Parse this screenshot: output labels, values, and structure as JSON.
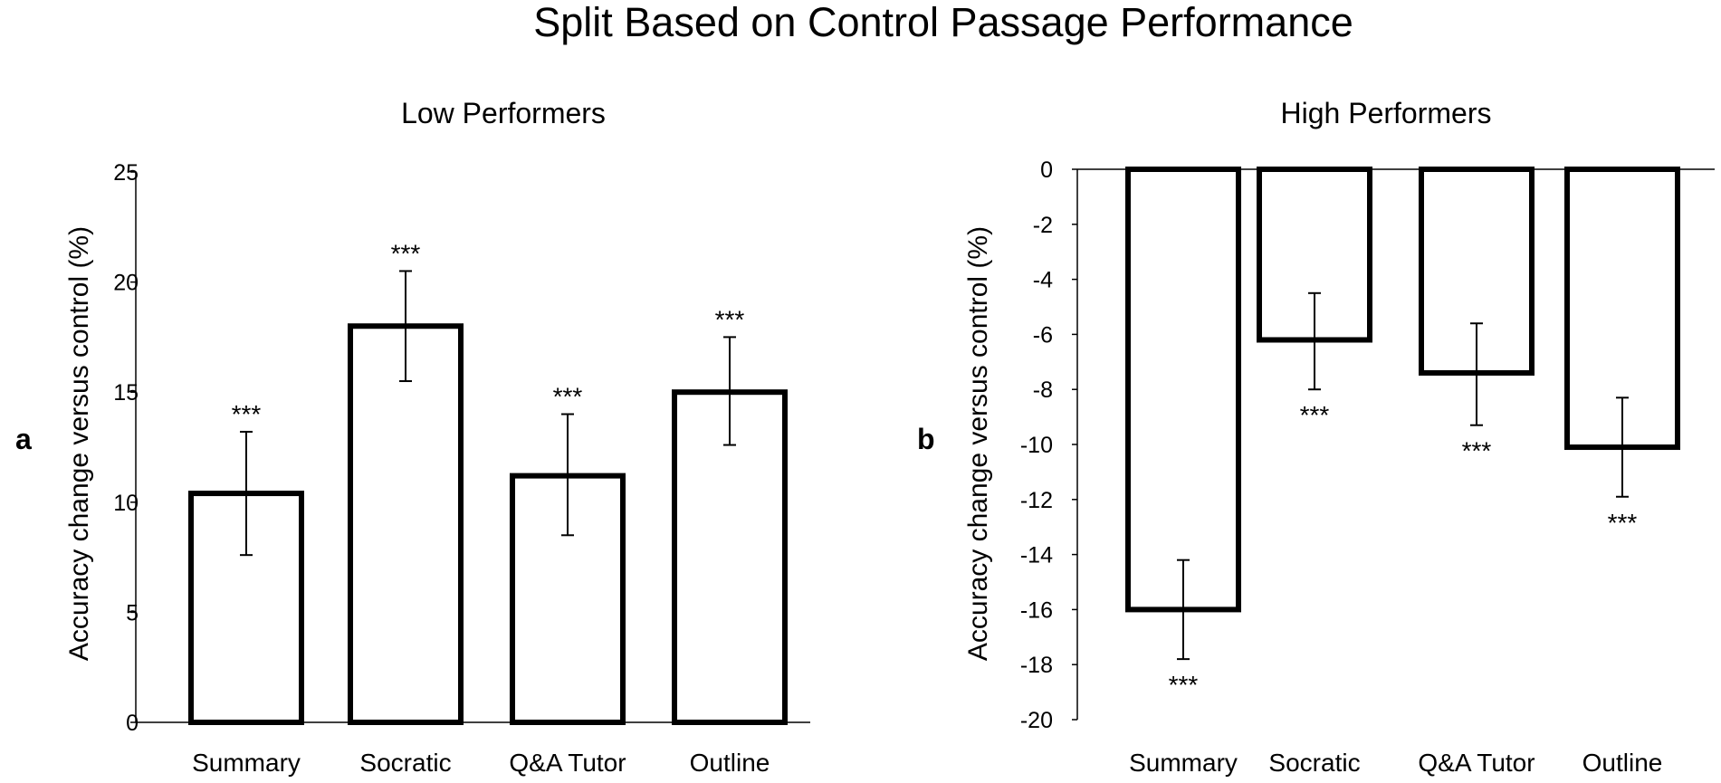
{
  "title": "Split Based on Control Passage Performance",
  "chart_data": [
    {
      "panel_label": "a",
      "type": "bar",
      "title": "Low Performers",
      "xlabel": "",
      "ylabel": "Accuracy change versus control (%)",
      "categories": [
        "Summary",
        "Socratic",
        "Q&A Tutor",
        "Outline"
      ],
      "values": [
        10.4,
        18.0,
        11.2,
        15.0
      ],
      "error_low": [
        7.6,
        15.5,
        8.5,
        12.6
      ],
      "error_high": [
        13.2,
        20.5,
        14.0,
        17.5
      ],
      "annotations": [
        "***",
        "***",
        "***",
        "***"
      ],
      "ylim": [
        0,
        25
      ],
      "yticks": [
        0,
        5,
        10,
        15,
        20,
        25
      ],
      "ytick_labels": [
        "0",
        "5",
        "10",
        "15",
        "20",
        "25"
      ],
      "bar_fill": "#ffffff",
      "bar_stroke": "#000000",
      "grid": false
    },
    {
      "panel_label": "b",
      "type": "bar",
      "title": "High Performers",
      "xlabel": "",
      "ylabel": "Accuracy change versus control (%)",
      "categories": [
        "Summary",
        "Socratic",
        "Q&A Tutor",
        "Outline"
      ],
      "values": [
        -16.0,
        -6.2,
        -7.4,
        -10.1
      ],
      "error_low": [
        -17.8,
        -8.0,
        -9.3,
        -11.9
      ],
      "error_high": [
        -14.2,
        -4.5,
        -5.6,
        -8.3
      ],
      "annotations": [
        "***",
        "***",
        "***",
        "***"
      ],
      "ylim": [
        -20,
        0
      ],
      "yticks": [
        0,
        -2,
        -4,
        -6,
        -8,
        -10,
        -12,
        -14,
        -16,
        -18,
        -20
      ],
      "ytick_labels": [
        "0",
        "-2",
        "-4",
        "-6",
        "-8",
        "-10",
        "-12",
        "-14",
        "-16",
        "-18",
        "-20"
      ],
      "bar_fill": "#ffffff",
      "bar_stroke": "#000000",
      "grid": false
    }
  ]
}
